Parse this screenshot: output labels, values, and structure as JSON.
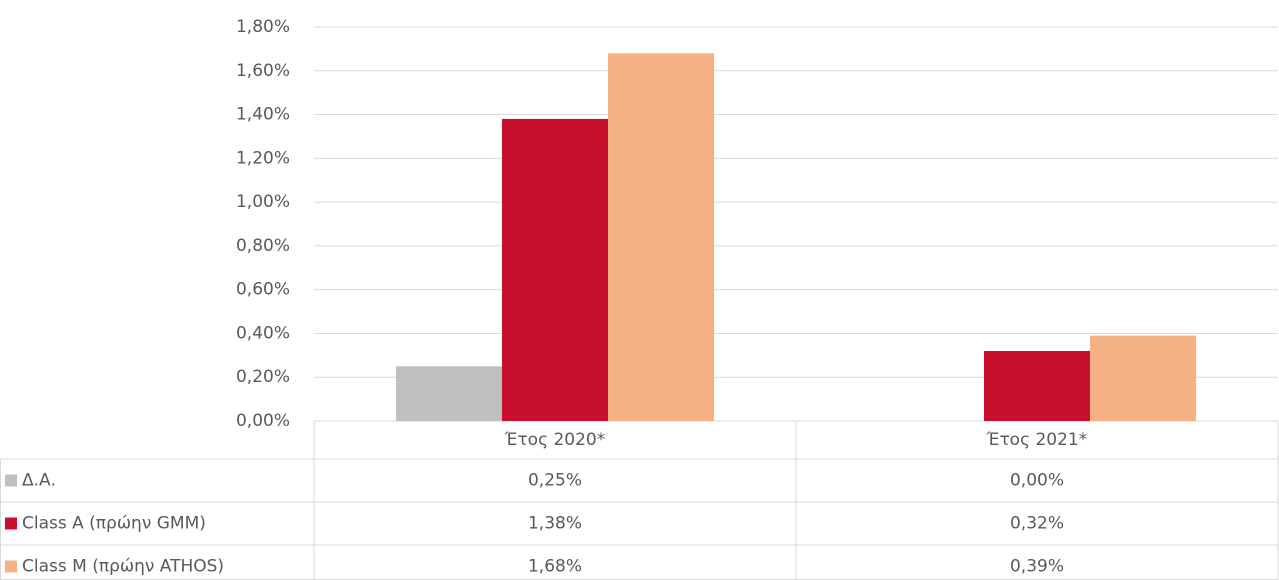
{
  "chart_data": {
    "type": "bar",
    "categories": [
      "Έτος 2020*",
      "Έτος 2021*"
    ],
    "series": [
      {
        "name": "Δ.Α.",
        "color": "#bfbfbf",
        "values": [
          0.25,
          0
        ],
        "value_labels": [
          "0,25%",
          "0,00%"
        ]
      },
      {
        "name": "Class A (πρώην GMM)",
        "color": "#c8102e",
        "values": [
          1.38,
          0.32
        ],
        "value_labels": [
          "1,38%",
          "0,32%"
        ]
      },
      {
        "name": "Class M (πρώην ATHOS)",
        "color": "#f4b183",
        "values": [
          1.68,
          0.39
        ],
        "value_labels": [
          "1,68%",
          "0,39%"
        ]
      }
    ],
    "ylim": [
      0,
      1.8
    ],
    "yticks": [
      {
        "value": 0,
        "label": "0,00%"
      },
      {
        "value": 0.2,
        "label": "0,20%"
      },
      {
        "value": 0.4,
        "label": "0,40%"
      },
      {
        "value": 0.6,
        "label": "0,60%"
      },
      {
        "value": 0.8,
        "label": "0,80%"
      },
      {
        "value": 1.0,
        "label": "1,00%"
      },
      {
        "value": 1.2,
        "label": "1,20%"
      },
      {
        "value": 1.4,
        "label": "1,40%"
      },
      {
        "value": 1.6,
        "label": "1,60%"
      },
      {
        "value": 1.8,
        "label": "1,80%"
      }
    ],
    "grid": true
  }
}
